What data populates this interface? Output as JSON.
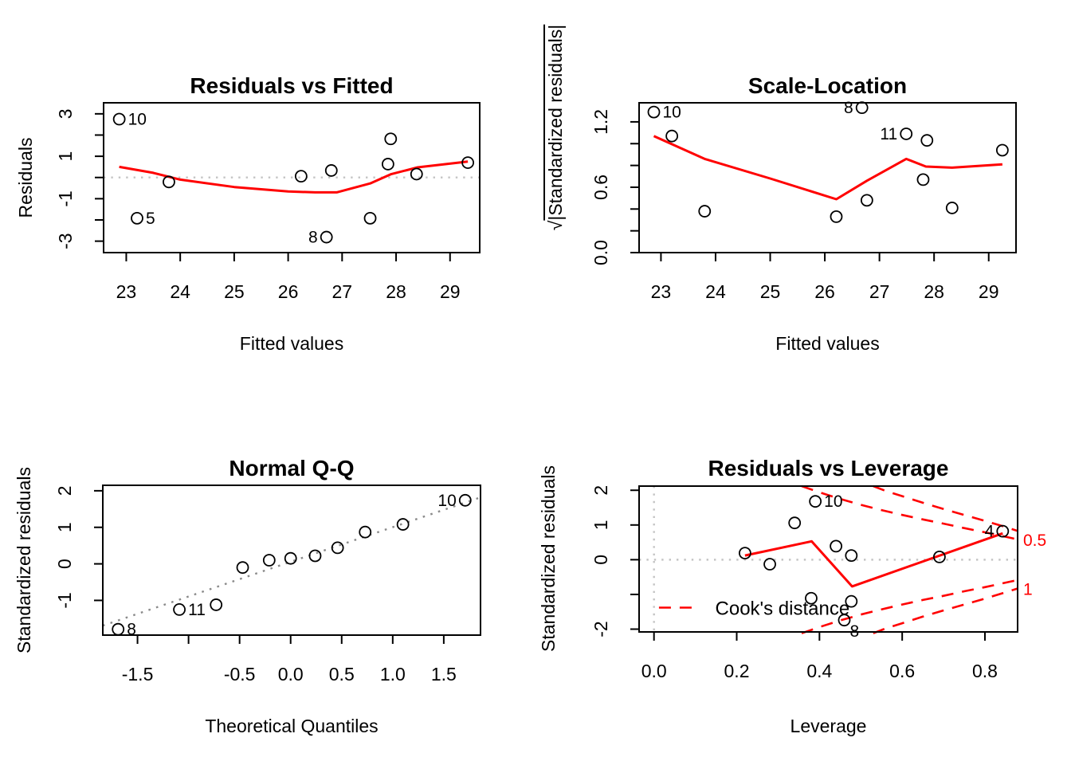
{
  "figure": {
    "background": "#ffffff",
    "accent_red": "#ff0000",
    "ref_line_gray": "#c4c4c4",
    "qq_line_gray": "#8a8a8a",
    "point_stroke": "#000000"
  },
  "chart_data": [
    {
      "id": "residuals-vs-fitted",
      "type": "scatter",
      "title": "Residuals vs Fitted",
      "xlabel": "Fitted values",
      "ylabel": "Residuals",
      "xlim": [
        22.58,
        29.55
      ],
      "ylim": [
        -3.54,
        3.52
      ],
      "xticks": [
        23,
        24,
        25,
        26,
        27,
        28,
        29
      ],
      "xtick_labels": [
        "23",
        "24",
        "25",
        "26",
        "27",
        "28",
        "29"
      ],
      "yticks": [
        3,
        2,
        1,
        0,
        -1,
        -2,
        -3
      ],
      "ytick_labels": [
        "3",
        "",
        "1",
        "",
        "-1",
        "",
        "-3"
      ],
      "zero_hline": 0,
      "points": [
        {
          "x": 22.87,
          "y": 2.75,
          "label": "10",
          "side": "right"
        },
        {
          "x": 23.2,
          "y": -1.92,
          "label": "5",
          "side": "right"
        },
        {
          "x": 23.79,
          "y": -0.21
        },
        {
          "x": 26.24,
          "y": 0.06
        },
        {
          "x": 26.71,
          "y": -2.81,
          "label": "8",
          "side": "left"
        },
        {
          "x": 26.8,
          "y": 0.33
        },
        {
          "x": 27.52,
          "y": -1.92
        },
        {
          "x": 27.85,
          "y": 0.63
        },
        {
          "x": 27.9,
          "y": 1.82
        },
        {
          "x": 28.38,
          "y": 0.16
        },
        {
          "x": 29.33,
          "y": 0.7
        }
      ],
      "smoother": [
        [
          22.87,
          0.5
        ],
        [
          23.5,
          0.22
        ],
        [
          24.0,
          -0.1
        ],
        [
          25.0,
          -0.45
        ],
        [
          26.0,
          -0.66
        ],
        [
          26.5,
          -0.7
        ],
        [
          26.9,
          -0.7
        ],
        [
          27.52,
          -0.28
        ],
        [
          27.9,
          0.15
        ],
        [
          28.4,
          0.48
        ],
        [
          29.33,
          0.75
        ]
      ]
    },
    {
      "id": "scale-location",
      "type": "scatter",
      "title": "Scale-Location",
      "xlabel": "Fitted values",
      "ylabel_sqrt_prefix": "√",
      "ylabel_sqrt_body": "|Standardized residuals|",
      "xlim": [
        22.6,
        29.5
      ],
      "ylim": [
        0,
        1.375
      ],
      "xticks": [
        23,
        24,
        25,
        26,
        27,
        28,
        29
      ],
      "xtick_labels": [
        "23",
        "24",
        "25",
        "26",
        "27",
        "28",
        "29"
      ],
      "yticks": [
        0,
        0.2,
        0.4,
        0.6,
        0.8,
        1.0,
        1.2
      ],
      "ytick_labels": [
        "0.0",
        "",
        "",
        "0.6",
        "",
        "",
        "1.2"
      ],
      "points": [
        {
          "x": 22.87,
          "y": 1.29,
          "label": "10",
          "side": "right"
        },
        {
          "x": 23.2,
          "y": 1.07
        },
        {
          "x": 23.8,
          "y": 0.38
        },
        {
          "x": 26.21,
          "y": 0.33
        },
        {
          "x": 26.68,
          "y": 1.33,
          "label": "8",
          "side": "left"
        },
        {
          "x": 26.77,
          "y": 0.48
        },
        {
          "x": 27.49,
          "y": 1.09,
          "label": "11",
          "side": "left"
        },
        {
          "x": 27.8,
          "y": 0.67
        },
        {
          "x": 27.87,
          "y": 1.03
        },
        {
          "x": 28.33,
          "y": 0.41
        },
        {
          "x": 29.25,
          "y": 0.94
        }
      ],
      "smoother": [
        [
          22.87,
          1.07
        ],
        [
          23.8,
          0.86
        ],
        [
          25.0,
          0.68
        ],
        [
          26.21,
          0.49
        ],
        [
          26.77,
          0.66
        ],
        [
          27.49,
          0.86
        ],
        [
          27.85,
          0.79
        ],
        [
          28.33,
          0.78
        ],
        [
          29.25,
          0.81
        ]
      ]
    },
    {
      "id": "normal-qq",
      "type": "scatter",
      "title": "Normal Q-Q",
      "xlabel": "Theoretical Quantiles",
      "ylabel": "Standardized residuals",
      "xlim": [
        -1.84,
        1.86
      ],
      "ylim": [
        -1.95,
        2.15
      ],
      "xticks": [
        -1.5,
        -1.0,
        -0.5,
        0,
        0.5,
        1.0,
        1.5
      ],
      "xtick_labels": [
        "-1.5",
        "",
        "-0.5",
        "0.0",
        "0.5",
        "1.0",
        "1.5"
      ],
      "yticks": [
        2,
        1,
        0,
        -1
      ],
      "ytick_labels": [
        "2",
        "1",
        "0",
        "-1"
      ],
      "qq_line": [
        [
          -1.84,
          -1.69
        ],
        [
          1.86,
          1.82
        ]
      ],
      "points": [
        {
          "x": -1.69,
          "y": -1.79,
          "label": "8",
          "side": "right"
        },
        {
          "x": -1.09,
          "y": -1.25,
          "label": "11",
          "side": "right"
        },
        {
          "x": -0.73,
          "y": -1.12
        },
        {
          "x": -0.47,
          "y": -0.1
        },
        {
          "x": -0.21,
          "y": 0.1
        },
        {
          "x": 0.0,
          "y": 0.15
        },
        {
          "x": 0.24,
          "y": 0.22
        },
        {
          "x": 0.46,
          "y": 0.44
        },
        {
          "x": 0.73,
          "y": 0.87
        },
        {
          "x": 1.1,
          "y": 1.08
        },
        {
          "x": 1.71,
          "y": 1.74,
          "label": "10",
          "side": "left"
        }
      ]
    },
    {
      "id": "residuals-vs-leverage",
      "type": "scatter",
      "title": "Residuals vs Leverage",
      "xlabel": "Leverage",
      "ylabel": "Standardized residuals",
      "xlim": [
        -0.036,
        0.879
      ],
      "ylim": [
        -2.08,
        2.12
      ],
      "xticks": [
        0,
        0.2,
        0.4,
        0.6,
        0.8
      ],
      "xtick_labels": [
        "0.0",
        "0.2",
        "0.4",
        "0.6",
        "0.8"
      ],
      "yticks": [
        2,
        1,
        0,
        -1,
        -2
      ],
      "ytick_labels": [
        "2",
        "1",
        "0",
        "",
        "-2"
      ],
      "zero_hline": 0,
      "zero_vline": 0,
      "points": [
        {
          "x": 0.22,
          "y": 0.19
        },
        {
          "x": 0.28,
          "y": -0.13
        },
        {
          "x": 0.34,
          "y": 1.06
        },
        {
          "x": 0.38,
          "y": -1.11
        },
        {
          "x": 0.39,
          "y": 1.68,
          "label": "10",
          "side": "right"
        },
        {
          "x": 0.44,
          "y": 0.39
        },
        {
          "x": 0.46,
          "y": -1.74,
          "label": "8",
          "side": "below"
        },
        {
          "x": 0.477,
          "y": 0.12
        },
        {
          "x": 0.477,
          "y": -1.2
        },
        {
          "x": 0.69,
          "y": 0.08
        },
        {
          "x": 0.843,
          "y": 0.82,
          "label": "4",
          "side": "left"
        }
      ],
      "smoother": [
        [
          0.22,
          0.12
        ],
        [
          0.381,
          0.53
        ],
        [
          0.479,
          -0.77
        ],
        [
          0.843,
          0.76
        ]
      ],
      "cook_contours": [
        {
          "level": "0.5",
          "pts": [
            [
              0.357,
              2.12
            ],
            [
              0.4,
              1.94
            ],
            [
              0.45,
              1.75
            ],
            [
              0.5,
              1.58
            ],
            [
              0.55,
              1.43
            ],
            [
              0.6,
              1.29
            ],
            [
              0.65,
              1.16
            ],
            [
              0.7,
              1.04
            ],
            [
              0.75,
              0.91
            ],
            [
              0.8,
              0.79
            ],
            [
              0.879,
              0.585
            ]
          ]
        },
        {
          "level": "1",
          "pts": [
            [
              0.53,
              2.12
            ],
            [
              0.56,
              1.98
            ],
            [
              0.6,
              1.83
            ],
            [
              0.65,
              1.64
            ],
            [
              0.7,
              1.46
            ],
            [
              0.75,
              1.29
            ],
            [
              0.8,
              1.12
            ],
            [
              0.85,
              0.94
            ],
            [
              0.879,
              0.83
            ]
          ]
        }
      ],
      "cook_labels": [
        {
          "text": "0.5",
          "y": 0.56
        },
        {
          "text": "1",
          "y": -0.85
        }
      ],
      "legend": {
        "dash_x": [
          0.012,
          0.092
        ],
        "dash_y": -1.38,
        "text": "Cook's distance",
        "text_x": 0.148,
        "text_y": -1.4
      }
    }
  ]
}
